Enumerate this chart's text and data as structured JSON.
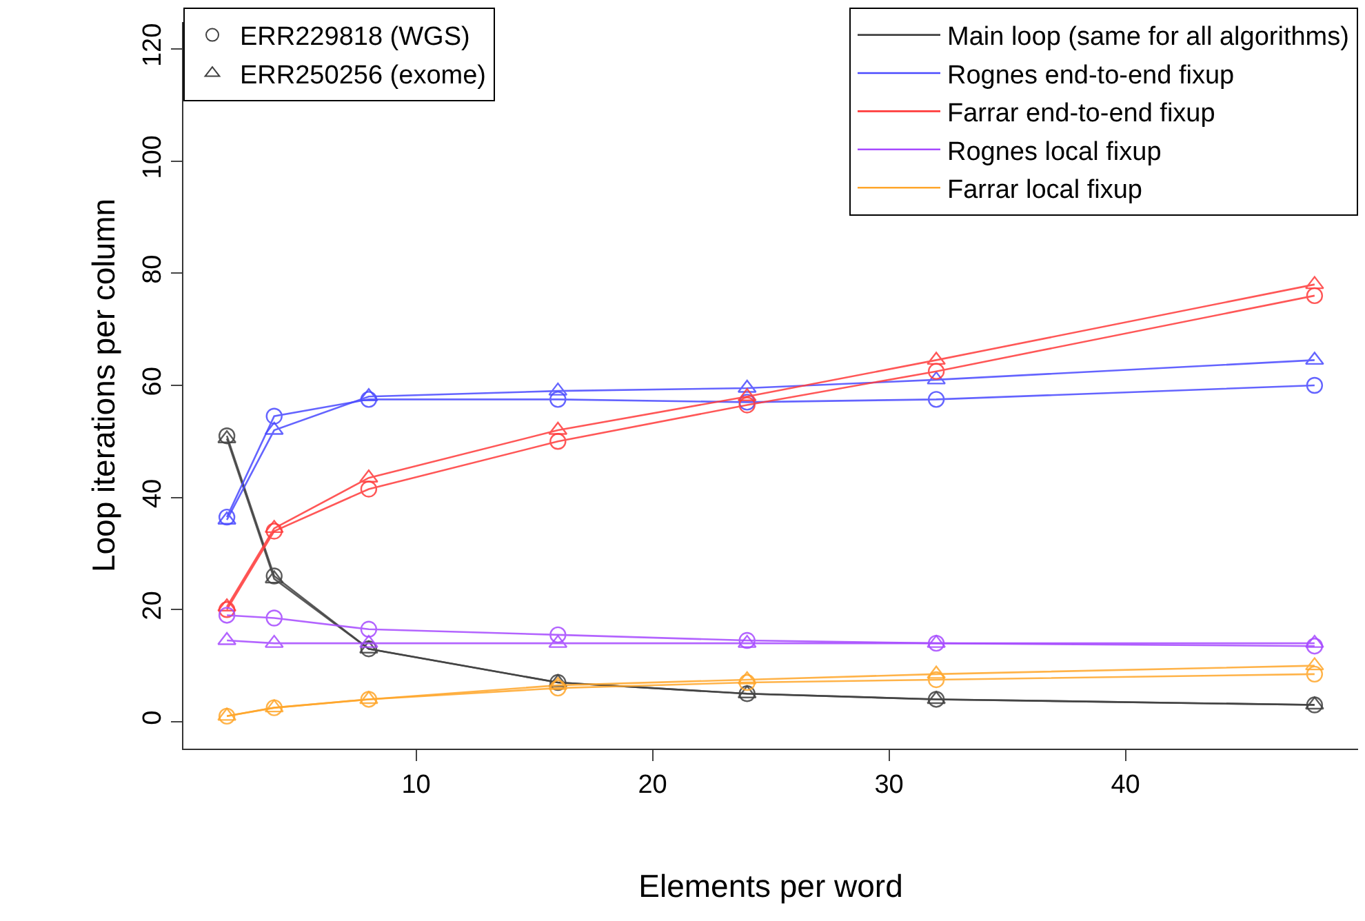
{
  "chart_data": {
    "type": "line",
    "xlabel": "Elements per word",
    "ylabel": "Loop iterations per column",
    "x": [
      2,
      4,
      8,
      16,
      24,
      32,
      48
    ],
    "series": [
      {
        "name": "Main loop (same for all algorithms)",
        "color": "#404040",
        "marker": "circle",
        "values": [
          51,
          26,
          13,
          7,
          5,
          4,
          3
        ]
      },
      {
        "color": "#404040",
        "marker": "triangle",
        "values": [
          50.5,
          25.5,
          13,
          7,
          5,
          4,
          3
        ]
      },
      {
        "name": "Rognes end-to-end fixup",
        "color": "#4a4aff",
        "marker": "circle",
        "values": [
          36.5,
          54.5,
          57.5,
          57.5,
          57,
          57.5,
          60
        ]
      },
      {
        "color": "#4a4aff",
        "marker": "triangle",
        "values": [
          36,
          52,
          58,
          59,
          59.5,
          61,
          64.5
        ]
      },
      {
        "name": "Farrar end-to-end fixup",
        "color": "#ff3a3a",
        "marker": "circle",
        "values": [
          20,
          34,
          41.5,
          50,
          56.5,
          62.5,
          76
        ]
      },
      {
        "color": "#ff3a3a",
        "marker": "triangle",
        "values": [
          20.5,
          34.5,
          43.5,
          52,
          58,
          64.5,
          78
        ]
      },
      {
        "name": "Rognes local fixup",
        "color": "#a64aff",
        "marker": "circle",
        "values": [
          19,
          18.5,
          16.5,
          15.5,
          14.5,
          14,
          13.5
        ]
      },
      {
        "color": "#a64aff",
        "marker": "triangle",
        "values": [
          14.5,
          14,
          14,
          14,
          14,
          14,
          14
        ]
      },
      {
        "name": "Farrar local fixup",
        "color": "#ffa62a",
        "marker": "circle",
        "values": [
          1,
          2.5,
          4,
          6,
          7,
          7.5,
          8.5
        ]
      },
      {
        "color": "#ffa62a",
        "marker": "triangle",
        "values": [
          1,
          2.5,
          4,
          6.5,
          7.5,
          8.5,
          10
        ]
      }
    ],
    "annotations": [
      "ERR229818 (WGS)",
      "ERR250256 (exome)"
    ],
    "xlim": [
      0.16,
      49.84
    ],
    "ylim": [
      -4.8,
      124.8
    ],
    "xticks": [
      10,
      20,
      30,
      40
    ],
    "yticks": [
      0,
      20,
      40,
      60,
      80,
      100,
      120
    ],
    "legend": "top right",
    "line_style": "solid"
  }
}
